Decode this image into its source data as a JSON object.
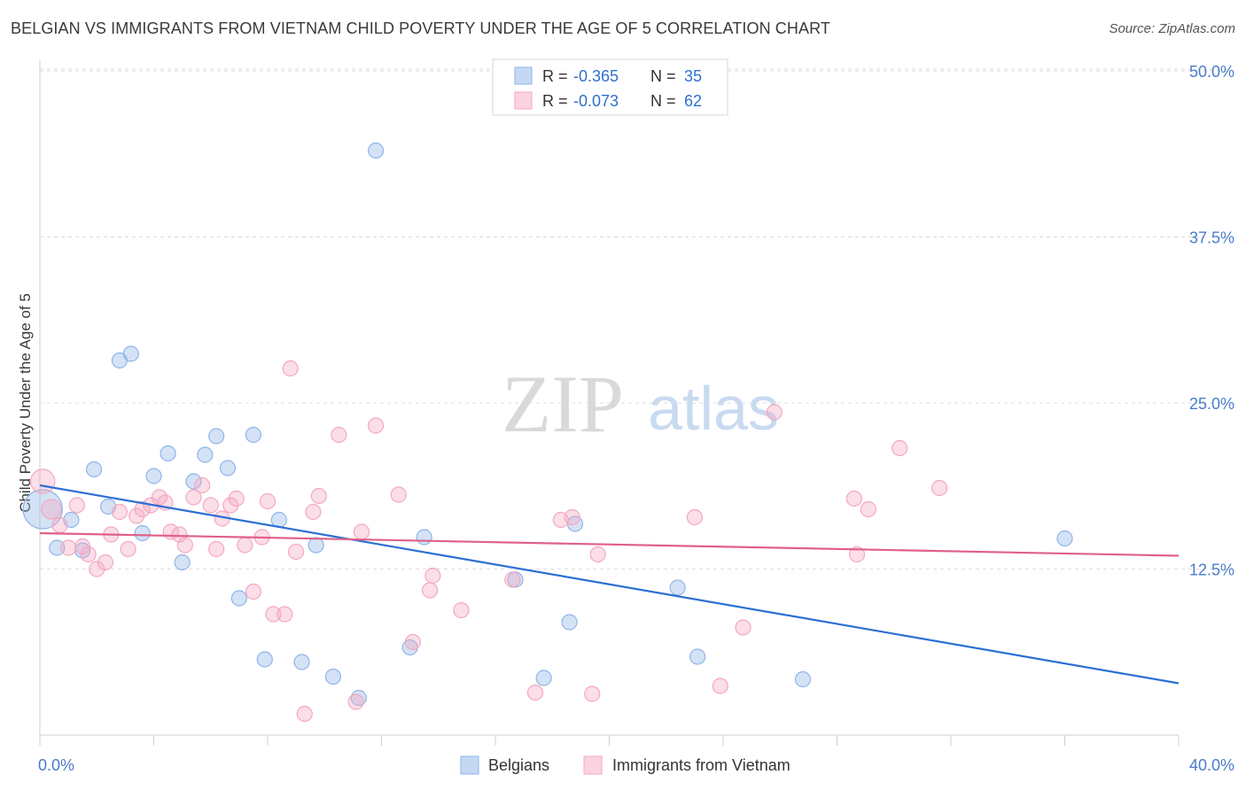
{
  "chart_data": {
    "type": "scatter",
    "title": "BELGIAN VS IMMIGRANTS FROM VIETNAM CHILD POVERTY UNDER THE AGE OF 5 CORRELATION CHART",
    "source": "Source: ZipAtlas.com",
    "ylabel": "Child Poverty Under the Age of 5",
    "xlabel": "",
    "xlim": [
      0,
      40
    ],
    "ylim": [
      0,
      50
    ],
    "x_tick_labels": [
      "0.0%",
      "40.0%"
    ],
    "y_ticks": [
      12.5,
      25.0,
      37.5,
      50.0
    ],
    "y_tick_labels": [
      "12.5%",
      "25.0%",
      "37.5%",
      "50.0%"
    ],
    "grid": true,
    "watermark": {
      "zip": "ZIP",
      "atlas": "atlas"
    },
    "legend_top": {
      "r_label": "R =",
      "n_label": "N =",
      "rows": [
        {
          "r": "-0.365",
          "n": "35"
        },
        {
          "r": "-0.073",
          "n": "62"
        }
      ]
    },
    "series": [
      {
        "name": "Belgians",
        "color": "#8fb4e8",
        "line_color": "#2a6fd4",
        "trend": [
          [
            0,
            18.8
          ],
          [
            40,
            3.9
          ]
        ],
        "points": [
          [
            0.1,
            17.0,
            2.6
          ],
          [
            0.6,
            14.1,
            1
          ],
          [
            1.1,
            16.2,
            1
          ],
          [
            1.5,
            13.9,
            1
          ],
          [
            1.9,
            20.0,
            1
          ],
          [
            2.4,
            17.2,
            1
          ],
          [
            2.8,
            28.2,
            1
          ],
          [
            3.2,
            28.7,
            1
          ],
          [
            3.6,
            15.2,
            1
          ],
          [
            4.0,
            19.5,
            1
          ],
          [
            4.5,
            21.2,
            1
          ],
          [
            5.0,
            13.0,
            1
          ],
          [
            5.4,
            19.1,
            1
          ],
          [
            5.8,
            21.1,
            1
          ],
          [
            6.2,
            22.5,
            1
          ],
          [
            6.6,
            20.1,
            1
          ],
          [
            7.0,
            10.3,
            1
          ],
          [
            7.5,
            22.6,
            1
          ],
          [
            7.9,
            5.7,
            1
          ],
          [
            8.4,
            16.2,
            1
          ],
          [
            9.2,
            5.5,
            1
          ],
          [
            9.7,
            14.3,
            1
          ],
          [
            10.3,
            4.4,
            1
          ],
          [
            11.2,
            2.8,
            1
          ],
          [
            11.8,
            44.0,
            1
          ],
          [
            13.0,
            6.6,
            1
          ],
          [
            13.5,
            14.9,
            1
          ],
          [
            16.7,
            11.7,
            1
          ],
          [
            17.7,
            4.3,
            1
          ],
          [
            18.6,
            8.5,
            1
          ],
          [
            18.8,
            15.9,
            1
          ],
          [
            22.4,
            11.1,
            1
          ],
          [
            23.1,
            5.9,
            1
          ],
          [
            26.8,
            4.2,
            1
          ],
          [
            36.0,
            14.8,
            1
          ]
        ]
      },
      {
        "name": "Immigrants from Vietnam",
        "color": "#f4a7c0",
        "line_color": "#e0608a",
        "trend": [
          [
            0,
            15.2
          ],
          [
            40,
            13.5
          ]
        ],
        "points": [
          [
            0.1,
            19.1,
            1.6
          ],
          [
            0.4,
            17.0,
            1.3
          ],
          [
            0.7,
            15.8,
            1
          ],
          [
            1.0,
            14.1,
            1
          ],
          [
            1.3,
            17.3,
            1
          ],
          [
            1.5,
            14.2,
            1
          ],
          [
            1.7,
            13.6,
            1
          ],
          [
            2.0,
            12.5,
            1
          ],
          [
            2.3,
            13.0,
            1
          ],
          [
            2.5,
            15.1,
            1
          ],
          [
            2.8,
            16.8,
            1
          ],
          [
            3.1,
            14.0,
            1
          ],
          [
            3.4,
            16.5,
            1
          ],
          [
            3.6,
            17.0,
            1
          ],
          [
            3.9,
            17.3,
            1
          ],
          [
            4.2,
            17.9,
            1
          ],
          [
            4.4,
            17.5,
            1
          ],
          [
            4.6,
            15.3,
            1
          ],
          [
            4.9,
            15.1,
            1
          ],
          [
            5.1,
            14.3,
            1
          ],
          [
            5.4,
            17.9,
            1
          ],
          [
            5.7,
            18.8,
            1
          ],
          [
            6.0,
            17.3,
            1
          ],
          [
            6.2,
            14.0,
            1
          ],
          [
            6.4,
            16.3,
            1
          ],
          [
            6.7,
            17.3,
            1
          ],
          [
            6.9,
            17.8,
            1
          ],
          [
            7.2,
            14.3,
            1
          ],
          [
            7.5,
            10.8,
            1
          ],
          [
            7.8,
            14.9,
            1
          ],
          [
            8.0,
            17.6,
            1
          ],
          [
            8.2,
            9.1,
            1
          ],
          [
            8.6,
            9.1,
            1
          ],
          [
            8.8,
            27.6,
            1
          ],
          [
            9.0,
            13.8,
            1
          ],
          [
            9.3,
            1.6,
            1
          ],
          [
            9.6,
            16.8,
            1
          ],
          [
            9.8,
            18.0,
            1
          ],
          [
            10.5,
            22.6,
            1
          ],
          [
            11.1,
            2.5,
            1
          ],
          [
            11.3,
            15.3,
            1
          ],
          [
            11.8,
            23.3,
            1
          ],
          [
            12.6,
            18.1,
            1
          ],
          [
            13.1,
            7.0,
            1
          ],
          [
            13.8,
            12.0,
            1
          ],
          [
            13.7,
            10.9,
            1
          ],
          [
            14.8,
            9.4,
            1
          ],
          [
            16.6,
            11.7,
            1
          ],
          [
            17.4,
            3.2,
            1
          ],
          [
            18.3,
            16.2,
            1
          ],
          [
            18.7,
            16.4,
            1
          ],
          [
            19.4,
            3.1,
            1
          ],
          [
            19.6,
            13.6,
            1
          ],
          [
            23.0,
            16.4,
            1
          ],
          [
            23.9,
            3.7,
            1
          ],
          [
            24.7,
            8.1,
            1
          ],
          [
            25.8,
            24.3,
            1
          ],
          [
            28.6,
            17.8,
            1
          ],
          [
            28.7,
            13.6,
            1
          ],
          [
            29.1,
            17.0,
            1
          ],
          [
            30.2,
            21.6,
            1
          ],
          [
            31.6,
            18.6,
            1
          ]
        ]
      }
    ]
  }
}
